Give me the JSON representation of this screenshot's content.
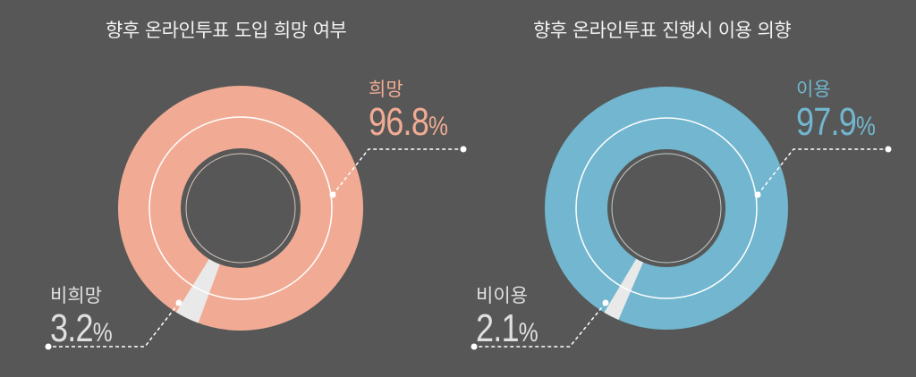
{
  "colors": {
    "background": "#565756",
    "pink": "#f1ab94",
    "blue": "#72b6cf",
    "minor_slice": "#e9e9e9",
    "title_text": "#f2f2f2",
    "minor_text": "#e0e0e0"
  },
  "chart_data": [
    {
      "type": "pie",
      "title": "향후 온라인투표 도입 희망 여부",
      "categories": [
        "희망",
        "비희망"
      ],
      "values": [
        96.8,
        3.2
      ],
      "unit": "%",
      "style": "donut"
    },
    {
      "type": "pie",
      "title": "향후 온라인투표 진행시 이용 의향",
      "categories": [
        "이용",
        "비이용"
      ],
      "values": [
        97.9,
        2.1
      ],
      "unit": "%",
      "style": "donut"
    }
  ],
  "left": {
    "title": "향후 온라인투표 도입 희망 여부",
    "major_label": "희망",
    "major_value": "96.8",
    "minor_label": "비희망",
    "minor_value": "3.2",
    "unit": "%"
  },
  "right": {
    "title": "향후 온라인투표 진행시 이용 의향",
    "major_label": "이용",
    "major_value": "97.9",
    "minor_label": "비이용",
    "minor_value": "2.1",
    "unit": "%"
  }
}
